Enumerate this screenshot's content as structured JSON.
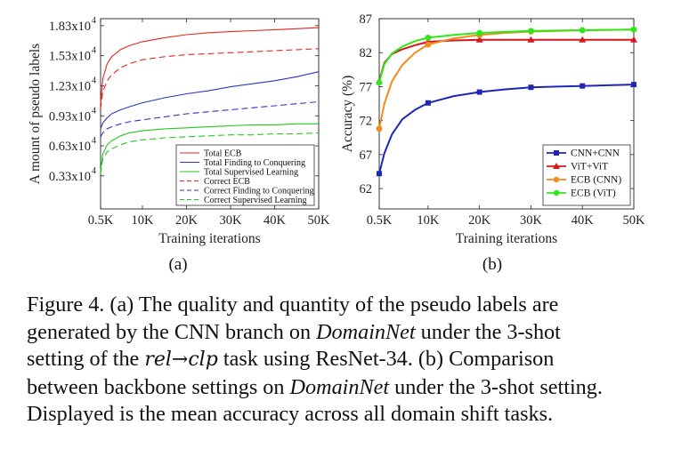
{
  "chart_data": [
    {
      "type": "line",
      "panel_label": "(a)",
      "xlabel": "Training iterations",
      "ylabel": "A mount of pseudo labels",
      "x": [
        0.5,
        1,
        2,
        3,
        5,
        7,
        10,
        15,
        20,
        25,
        30,
        35,
        40,
        45,
        50
      ],
      "xticks": [
        0.5,
        10,
        20,
        30,
        40,
        50
      ],
      "xtick_labels": [
        "0.5K",
        "10K",
        "20K",
        "30K",
        "40K",
        "50K"
      ],
      "xlim": [
        0.5,
        50
      ],
      "ylim": [
        0.0,
        1.9
      ],
      "yticks": [
        0.33,
        0.63,
        0.93,
        1.23,
        1.53,
        1.83
      ],
      "ytick_mantissas": [
        "1.83x10",
        "1.53x10",
        "1.23x10",
        "0.93x10",
        "0.63x10",
        "0.33x10"
      ],
      "ytick_exponent": "4",
      "legend_position": "lower-right",
      "series": [
        {
          "name": "Total ECB",
          "color": "#e8251f",
          "dash": "solid",
          "values": [
            1.05,
            1.3,
            1.45,
            1.52,
            1.59,
            1.63,
            1.67,
            1.71,
            1.74,
            1.76,
            1.77,
            1.78,
            1.79,
            1.8,
            1.81
          ]
        },
        {
          "name": "Total Finding to Conquering",
          "color": "#2b35c9",
          "dash": "solid",
          "values": [
            0.8,
            0.86,
            0.91,
            0.95,
            0.99,
            1.02,
            1.06,
            1.11,
            1.15,
            1.18,
            1.22,
            1.25,
            1.28,
            1.32,
            1.37
          ]
        },
        {
          "name": "Total Supervised Learning",
          "color": "#23c91b",
          "dash": "solid",
          "values": [
            0.38,
            0.55,
            0.64,
            0.68,
            0.73,
            0.76,
            0.78,
            0.8,
            0.81,
            0.82,
            0.83,
            0.84,
            0.84,
            0.85,
            0.85
          ]
        },
        {
          "name": "Correct ECB",
          "color": "#e8251f",
          "dash": "dashed",
          "values": [
            1.0,
            1.17,
            1.28,
            1.34,
            1.41,
            1.45,
            1.49,
            1.52,
            1.54,
            1.55,
            1.56,
            1.57,
            1.58,
            1.59,
            1.6
          ]
        },
        {
          "name": "Correct Finding to Conquering",
          "color": "#2b35c9",
          "dash": "dashed",
          "values": [
            0.72,
            0.76,
            0.8,
            0.82,
            0.85,
            0.87,
            0.89,
            0.92,
            0.95,
            0.97,
            0.99,
            1.01,
            1.03,
            1.05,
            1.07
          ]
        },
        {
          "name": "Correct Supervised Learning",
          "color": "#23c91b",
          "dash": "dashed",
          "values": [
            0.35,
            0.5,
            0.57,
            0.6,
            0.64,
            0.67,
            0.69,
            0.71,
            0.72,
            0.73,
            0.74,
            0.74,
            0.75,
            0.75,
            0.76
          ]
        }
      ]
    },
    {
      "type": "line",
      "panel_label": "(b)",
      "xlabel": "Training iterations",
      "ylabel": "Accuracy (%)",
      "x": [
        0.5,
        10,
        20,
        30,
        40,
        50
      ],
      "xticks": [
        0.5,
        10,
        20,
        30,
        40,
        50
      ],
      "xtick_labels": [
        "0.5K",
        "10K",
        "20K",
        "30K",
        "40K",
        "50K"
      ],
      "xlim": [
        0.5,
        50
      ],
      "ylim": [
        59,
        87
      ],
      "yticks": [
        62,
        67,
        72,
        77,
        82,
        87
      ],
      "legend_position": "lower-right",
      "series": [
        {
          "name": "CNN+CNN",
          "color": "#1c27b8",
          "marker": "square",
          "values": [
            64.2,
            74.6,
            76.2,
            76.9,
            77.1,
            77.3
          ],
          "curve": [
            [
              0.5,
              64.2
            ],
            [
              1.5,
              67.2
            ],
            [
              3,
              70.0
            ],
            [
              5,
              72.2
            ],
            [
              7.5,
              73.6
            ],
            [
              10,
              74.6
            ],
            [
              15,
              75.6
            ],
            [
              20,
              76.2
            ],
            [
              25,
              76.6
            ],
            [
              30,
              76.9
            ],
            [
              35,
              77.0
            ],
            [
              40,
              77.1
            ],
            [
              45,
              77.2
            ],
            [
              50,
              77.3
            ]
          ]
        },
        {
          "name": "ViT+ViT",
          "color": "#d8151d",
          "marker": "triangle",
          "values": [
            77.8,
            83.6,
            83.9,
            83.9,
            83.9,
            83.9
          ],
          "curve": [
            [
              0.5,
              77.8
            ],
            [
              1.5,
              80.5
            ],
            [
              3,
              81.8
            ],
            [
              5,
              82.5
            ],
            [
              7.5,
              83.1
            ],
            [
              10,
              83.6
            ],
            [
              15,
              83.8
            ],
            [
              20,
              83.9
            ],
            [
              30,
              83.9
            ],
            [
              40,
              83.9
            ],
            [
              50,
              83.9
            ]
          ]
        },
        {
          "name": "ECB (CNN)",
          "color": "#f28a1c",
          "marker": "circle",
          "values": [
            70.8,
            83.2,
            84.6,
            85.1,
            85.3,
            85.4
          ],
          "curve": [
            [
              0.5,
              70.8
            ],
            [
              1.5,
              74.5
            ],
            [
              3,
              77.8
            ],
            [
              5,
              80.2
            ],
            [
              7.5,
              82.0
            ],
            [
              10,
              83.2
            ],
            [
              15,
              84.1
            ],
            [
              20,
              84.6
            ],
            [
              25,
              84.9
            ],
            [
              30,
              85.1
            ],
            [
              40,
              85.3
            ],
            [
              50,
              85.4
            ]
          ]
        },
        {
          "name": "ECB (ViT)",
          "color": "#2ee81b",
          "marker": "circle",
          "values": [
            77.6,
            84.2,
            84.9,
            85.2,
            85.3,
            85.4
          ],
          "curve": [
            [
              0.5,
              77.6
            ],
            [
              1.5,
              80.3
            ],
            [
              3,
              81.9
            ],
            [
              5,
              82.9
            ],
            [
              7.5,
              83.7
            ],
            [
              10,
              84.2
            ],
            [
              15,
              84.6
            ],
            [
              20,
              84.9
            ],
            [
              30,
              85.2
            ],
            [
              40,
              85.3
            ],
            [
              50,
              85.4
            ]
          ]
        }
      ]
    }
  ],
  "caption": {
    "figure_label": "Figure 4.",
    "line1_a": "(a) The quality and quantity of the pseudo labels are",
    "line2_a": "generated by the CNN branch on",
    "domain": "DomainNet",
    "line2_b": "under the 3-shot",
    "line3_a": "setting of the",
    "task_src": "rel",
    "arrow": "→",
    "task_tgt": "clp",
    "line3_b": "task using ResNet-34.",
    "line3_c": "(b) Comparison",
    "line4_a": "between backbone settings on",
    "line4_b": "under the 3-shot setting.",
    "line5": "Displayed is the mean accuracy across all domain shift tasks."
  }
}
